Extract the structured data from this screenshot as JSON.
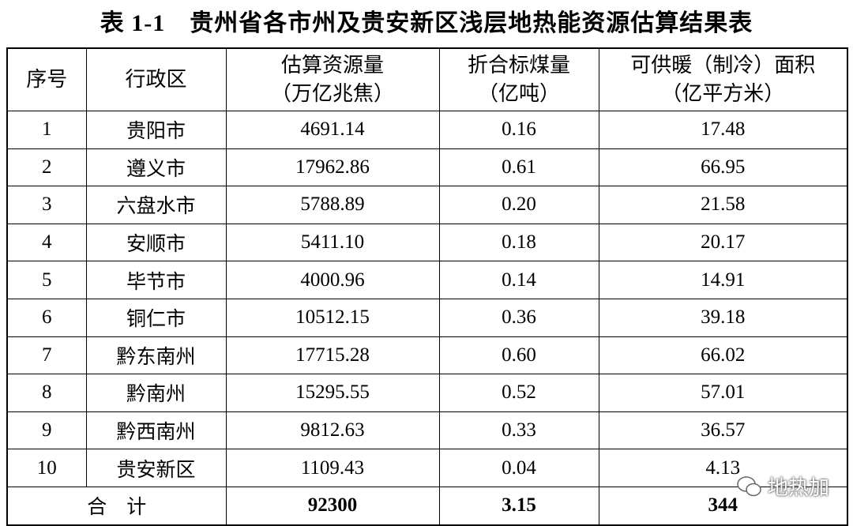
{
  "title": "表 1-1　贵州省各市州及贵安新区浅层地热能资源估算结果表",
  "table": {
    "header": [
      [
        "序号"
      ],
      [
        "行政区"
      ],
      [
        "估算资源量",
        "（万亿兆焦）"
      ],
      [
        "折合标煤量",
        "（亿吨）"
      ],
      [
        "可供暖（制冷）面积",
        "（亿平方米）"
      ]
    ],
    "rows": [
      [
        "1",
        "贵阳市",
        "4691.14",
        "0.16",
        "17.48"
      ],
      [
        "2",
        "遵义市",
        "17962.86",
        "0.61",
        "66.95"
      ],
      [
        "3",
        "六盘水市",
        "5788.89",
        "0.20",
        "21.58"
      ],
      [
        "4",
        "安顺市",
        "5411.10",
        "0.18",
        "20.17"
      ],
      [
        "5",
        "毕节市",
        "4000.96",
        "0.14",
        "14.91"
      ],
      [
        "6",
        "铜仁市",
        "10512.15",
        "0.36",
        "39.18"
      ],
      [
        "7",
        "黔东南州",
        "17715.28",
        "0.60",
        "66.02"
      ],
      [
        "8",
        "黔南州",
        "15295.55",
        "0.52",
        "57.01"
      ],
      [
        "9",
        "黔西南州",
        "9812.63",
        "0.33",
        "36.57"
      ],
      [
        "10",
        "贵安新区",
        "1109.43",
        "0.04",
        "4.13"
      ]
    ],
    "total": [
      "合　计",
      "92300",
      "3.15",
      "344"
    ]
  },
  "watermark": "地热加"
}
